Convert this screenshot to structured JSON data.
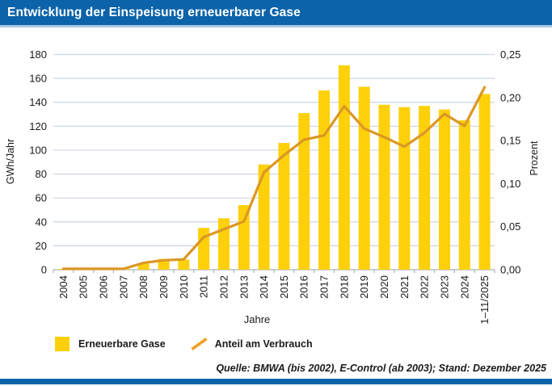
{
  "header": {
    "title": "Entwicklung der Einspeisung erneuerbarer Gase"
  },
  "colors": {
    "header_blue": "#0b63a9",
    "header_underline": "#a9c7e2",
    "bar_yellow": "#fdd00a",
    "line_orange": "#db9724",
    "legend_line_orange": "#efa125",
    "grid": "#cdd5e0",
    "axis": "#a8b2be",
    "text": "#1a1a1a"
  },
  "chart_data": {
    "type": "bar",
    "title": "Entwicklung der Einspeisung erneuerbarer Gase",
    "categories": [
      "2004",
      "2005",
      "2006",
      "2007",
      "2008",
      "2009",
      "2010",
      "2011",
      "2012",
      "2013",
      "2014",
      "2015",
      "2016",
      "2017",
      "2018",
      "2019",
      "2020",
      "2021",
      "2022",
      "2023",
      "2024",
      "1–11/2025"
    ],
    "series": [
      {
        "name": "Erneuerbare Gase",
        "type": "bar",
        "axis": "left",
        "color": "#fdd00a",
        "values": [
          0.5,
          0.5,
          0.5,
          1,
          5,
          9,
          8.5,
          35,
          43,
          54,
          88,
          106,
          131,
          150,
          171,
          153,
          138,
          136,
          137,
          134,
          125,
          147
        ]
      },
      {
        "name": "Anteil am Verbrauch",
        "type": "line",
        "axis": "right",
        "color": "#db9724",
        "values": [
          0.001,
          0.001,
          0.001,
          0.001,
          0.008,
          0.011,
          0.012,
          0.038,
          0.047,
          0.056,
          0.113,
          0.133,
          0.151,
          0.156,
          0.19,
          0.164,
          0.154,
          0.143,
          0.159,
          0.181,
          0.167,
          0.212
        ]
      }
    ],
    "xlabel": "Jahre",
    "left_axis": {
      "label": "GWh/Jahr",
      "min": 0,
      "max": 180,
      "step": 20,
      "ticks": [
        "0",
        "20",
        "40",
        "60",
        "80",
        "100",
        "120",
        "140",
        "160",
        "180"
      ]
    },
    "right_axis": {
      "label": "Prozent",
      "min": 0,
      "max": 0.25,
      "step": 0.05,
      "ticks": [
        "0,00",
        "0,05",
        "0,10",
        "0,15",
        "0,20",
        "0,25"
      ]
    },
    "grid": true,
    "legend_position": "bottom"
  },
  "legend": {
    "items": [
      {
        "label": "Erneuerbare Gase",
        "swatch": "square"
      },
      {
        "label": "Anteil am Verbrauch",
        "swatch": "line"
      }
    ]
  },
  "footer": {
    "source": "Quelle: BMWA (bis 2002), E-Control (ab 2003); Stand: Dezember 2025"
  }
}
